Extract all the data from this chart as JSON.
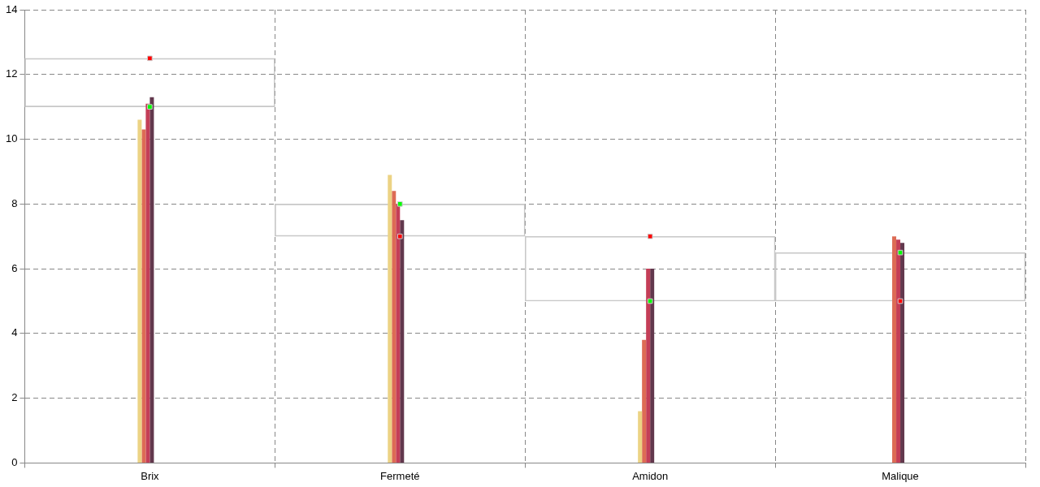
{
  "chart_data": {
    "type": "bar",
    "categories": [
      "Brix",
      "Fermeté",
      "Amidon",
      "Malique"
    ],
    "series": [
      {
        "color": "#c8c8c8",
        "base": [
          11,
          7,
          5,
          5
        ],
        "values": [
          1.5,
          1,
          2,
          1.5
        ]
      },
      {
        "color": "#ecd384",
        "values": [
          10.6,
          8.9,
          1.6,
          0
        ]
      },
      {
        "color": "#dd6b55",
        "values": [
          10.3,
          8.4,
          3.8,
          7.0
        ]
      },
      {
        "color": "#c43e57",
        "values": [
          11.1,
          8.0,
          6.0,
          6.9
        ]
      },
      {
        "color": "#62384d",
        "values": [
          11.3,
          7.5,
          6.0,
          6.8
        ]
      },
      {
        "type": "scatter",
        "color": "#00ff00",
        "x": [
          "Brix",
          "Fermeté",
          "Amidon",
          "Malique"
        ],
        "values": [
          11,
          8,
          5,
          6.5
        ]
      },
      {
        "type": "scatter",
        "color": "#ff0000",
        "x": [
          "Brix",
          "Fermeté",
          "Amidon",
          "Malique"
        ],
        "values": [
          12.5,
          7,
          7,
          5
        ]
      }
    ],
    "ylim": [
      0,
      14
    ],
    "yticks": [
      0,
      2,
      4,
      6,
      8,
      10,
      12,
      14
    ],
    "grid": true,
    "legend": false,
    "marker": "square"
  }
}
